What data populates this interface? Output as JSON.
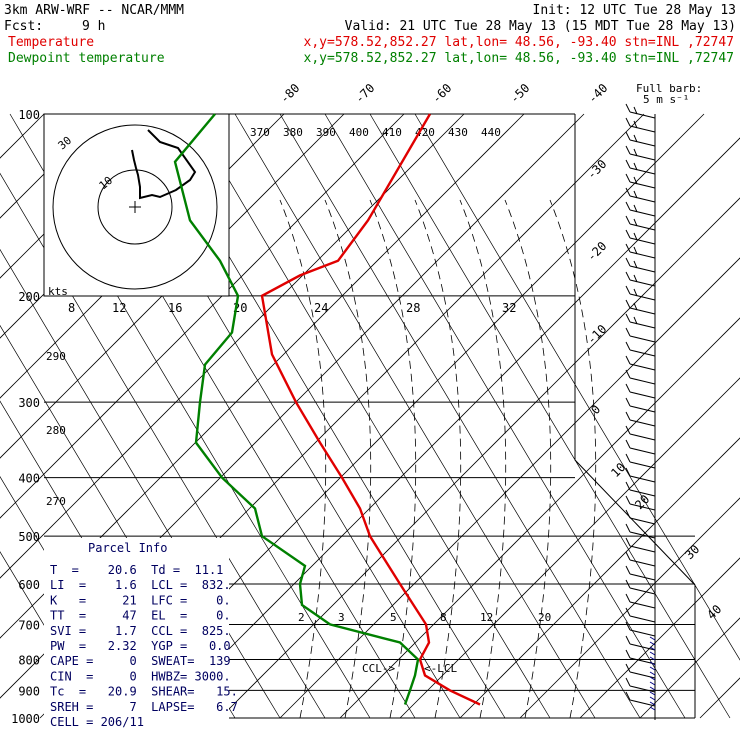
{
  "header": {
    "line1_left": "3km ARW-WRF -- NCAR/MMM",
    "line1_right": "Init: 12 UTC Tue 28 May 13",
    "line2_fcst": "Fcst:",
    "line2_hours": "9 h",
    "line2_valid": "Valid: 21 UTC Tue 28 May 13 (15 MDT Tue 28 May 13)",
    "temp_label": "Temperature",
    "temp_info": "x,y=578.52,852.27   lat,lon= 48.56, -93.40  stn=INL ,72747",
    "dew_label": "Dewpoint temperature",
    "dew_info": "x,y=578.52,852.27   lat,lon= 48.56, -93.40  stn=INL ,72747"
  },
  "chart_data": {
    "type": "line",
    "title": "",
    "xlabel": "",
    "ylabel": "",
    "pressure_levels": [
      100,
      200,
      300,
      400,
      500,
      600,
      700,
      800,
      900,
      1000
    ],
    "top_temp_labels": [
      "-80",
      "-70",
      "-60",
      "-50",
      "-40"
    ],
    "right_temp_labels": [
      "-30",
      "-20",
      "-10",
      "0",
      "10",
      "20",
      "30",
      "40"
    ],
    "theta_labels": [
      "370",
      "380",
      "390",
      "400",
      "410",
      "420",
      "430",
      "440"
    ],
    "mixing_ratio_labels": [
      "8",
      "12",
      "16",
      "20",
      "24",
      "28",
      "32"
    ],
    "lower_mixing_labels": [
      "2",
      "3",
      "5",
      "8",
      "12",
      "20"
    ],
    "left_theta_labels": [
      "290",
      "280",
      "270"
    ],
    "kts_label": "kts",
    "wind_legend": [
      "Full barb:",
      "5 m s⁻¹"
    ],
    "hodograph_labels": [
      "30",
      "10"
    ],
    "ccl_marker": "CCL->",
    "lcl_marker": "<-LCL",
    "series": [
      {
        "name": "Temperature",
        "color": "#e00000",
        "points": [
          {
            "p": 100,
            "x": 430
          },
          {
            "p": 150,
            "x": 368
          },
          {
            "p": 175,
            "x": 338
          },
          {
            "p": 185,
            "x": 300
          },
          {
            "p": 200,
            "x": 262
          },
          {
            "p": 250,
            "x": 272
          },
          {
            "p": 300,
            "x": 296
          },
          {
            "p": 350,
            "x": 320
          },
          {
            "p": 400,
            "x": 342
          },
          {
            "p": 450,
            "x": 360
          },
          {
            "p": 500,
            "x": 370
          },
          {
            "p": 600,
            "x": 400
          },
          {
            "p": 700,
            "x": 426
          },
          {
            "p": 750,
            "x": 429
          },
          {
            "p": 800,
            "x": 420
          },
          {
            "p": 850,
            "x": 425
          },
          {
            "p": 900,
            "x": 450
          },
          {
            "p": 950,
            "x": 480
          }
        ]
      },
      {
        "name": "Dewpoint temperature",
        "color": "#008000",
        "points": [
          {
            "p": 100,
            "x": 215
          },
          {
            "p": 120,
            "x": 175
          },
          {
            "p": 150,
            "x": 190
          },
          {
            "p": 175,
            "x": 220
          },
          {
            "p": 200,
            "x": 238
          },
          {
            "p": 230,
            "x": 232
          },
          {
            "p": 260,
            "x": 205
          },
          {
            "p": 300,
            "x": 200
          },
          {
            "p": 350,
            "x": 196
          },
          {
            "p": 400,
            "x": 222
          },
          {
            "p": 450,
            "x": 255
          },
          {
            "p": 500,
            "x": 262
          },
          {
            "p": 560,
            "x": 305
          },
          {
            "p": 600,
            "x": 300
          },
          {
            "p": 650,
            "x": 302
          },
          {
            "p": 700,
            "x": 330
          },
          {
            "p": 750,
            "x": 400
          },
          {
            "p": 800,
            "x": 418
          },
          {
            "p": 850,
            "x": 415
          },
          {
            "p": 900,
            "x": 410
          },
          {
            "p": 950,
            "x": 405
          }
        ]
      }
    ]
  },
  "parcel_info": {
    "title": "Parcel Info",
    "rows": [
      "T  =    20.6  Td =  11.1",
      "LI  =    1.6  LCL =  832.",
      "K   =     21  LFC =    0.",
      "TT  =     47  EL  =    0.",
      "SVI =    1.7  CCL =  825.",
      "PW  =   2.32  YGP =   0.0",
      "CAPE =     0  SWEAT=  139",
      "CIN  =     0  HWBZ= 3000.",
      "Tc  =   20.9  SHEAR=   15.",
      "SREH =     7  LAPSE=   6.7",
      "CELL = 206/11"
    ]
  }
}
